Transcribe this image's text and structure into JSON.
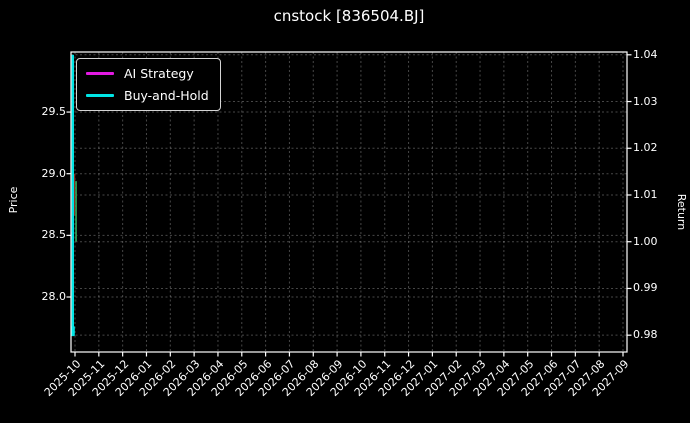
{
  "chart_data": {
    "type": "line+candlestick",
    "title": "cnstock [836504.BJ]",
    "x_axis": {
      "tick_labels": [
        "2025-10",
        "2025-11",
        "2025-12",
        "2026-01",
        "2026-02",
        "2026-03",
        "2026-04",
        "2026-05",
        "2026-06",
        "2026-07",
        "2026-08",
        "2026-09",
        "2026-10",
        "2026-11",
        "2026-12",
        "2027-01",
        "2027-02",
        "2027-03",
        "2027-04",
        "2027-05",
        "2027-06",
        "2027-07",
        "2027-08",
        "2027-09"
      ],
      "label_rotation_deg": 45
    },
    "left_axis": {
      "label": "Price",
      "tick_labels": [
        "29.5",
        "29.0",
        "28.5",
        "28.0"
      ],
      "tick_values": [
        29.5,
        29.0,
        28.5,
        28.0
      ],
      "range": [
        27.554,
        29.987
      ]
    },
    "right_axis": {
      "label": "Return",
      "tick_labels": [
        "1.04",
        "1.03",
        "1.02",
        "1.01",
        "1.00",
        "0.99",
        "0.98"
      ],
      "tick_values": [
        1.04,
        1.03,
        1.02,
        1.01,
        1.0,
        0.99,
        0.98
      ],
      "range": [
        0.9764,
        1.0406
      ]
    },
    "legend": {
      "position": "upper-left",
      "entries": [
        {
          "label": "AI Strategy",
          "color": "#e31ae3"
        },
        {
          "label": "Buy-and-Hold",
          "color": "#00e5e5"
        }
      ]
    },
    "grid": {
      "visible": true,
      "line_style": "dashed",
      "color": "rgba(255,255,255,0.28)"
    },
    "series": [
      {
        "name": "AI Strategy",
        "axis": "return",
        "color": "#e31ae3",
        "visible_range": {
          "x": "2025-10",
          "min": 1.0005,
          "max": 1.002
        }
      },
      {
        "name": "Buy-and-Hold",
        "axis": "return",
        "color": "#00e5e5",
        "visible_range": {
          "x": "2025-10",
          "min": 0.98,
          "max": 1.04
        }
      }
    ],
    "candles": [
      {
        "x": "2025-10",
        "direction": "down",
        "color": "#8f2b21",
        "high": 29.0,
        "low": 28.66
      },
      {
        "x": "2025-10",
        "direction": "up",
        "color": "#2f9e57",
        "high": 28.94,
        "low": 28.45
      }
    ],
    "colors": {
      "background": "#000000",
      "foreground": "#ffffff"
    }
  }
}
